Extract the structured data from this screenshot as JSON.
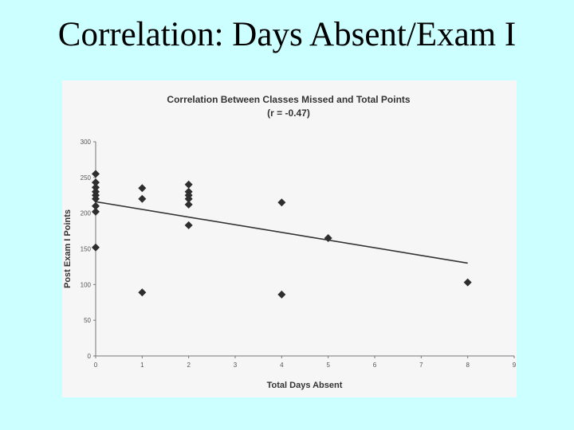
{
  "slide": {
    "title": "Correlation: Days Absent/Exam I"
  },
  "chart_data": {
    "type": "scatter",
    "title": "Correlation Between Classes Missed and Total Points",
    "subtitle": "(r = -0.47)",
    "xlabel": "Total Days Absent",
    "ylabel": "Post Exam I Points",
    "xlim": [
      0,
      9
    ],
    "ylim": [
      0,
      300
    ],
    "xticks": [
      0,
      1,
      2,
      3,
      4,
      5,
      6,
      7,
      8,
      9
    ],
    "yticks": [
      0,
      50,
      100,
      150,
      200,
      250,
      300
    ],
    "grid": false,
    "points": [
      {
        "x": 0,
        "y": 255
      },
      {
        "x": 0,
        "y": 243
      },
      {
        "x": 0,
        "y": 236
      },
      {
        "x": 0,
        "y": 230
      },
      {
        "x": 0,
        "y": 225
      },
      {
        "x": 0,
        "y": 220
      },
      {
        "x": 0,
        "y": 210
      },
      {
        "x": 0,
        "y": 202
      },
      {
        "x": 0,
        "y": 152
      },
      {
        "x": 1,
        "y": 235
      },
      {
        "x": 1,
        "y": 220
      },
      {
        "x": 1,
        "y": 89
      },
      {
        "x": 2,
        "y": 240
      },
      {
        "x": 2,
        "y": 230
      },
      {
        "x": 2,
        "y": 225
      },
      {
        "x": 2,
        "y": 220
      },
      {
        "x": 2,
        "y": 212
      },
      {
        "x": 2,
        "y": 183
      },
      {
        "x": 4,
        "y": 215
      },
      {
        "x": 4,
        "y": 86
      },
      {
        "x": 5,
        "y": 165
      },
      {
        "x": 8,
        "y": 103
      }
    ],
    "trendline": {
      "x": [
        0,
        8
      ],
      "y": [
        216,
        130
      ]
    }
  }
}
